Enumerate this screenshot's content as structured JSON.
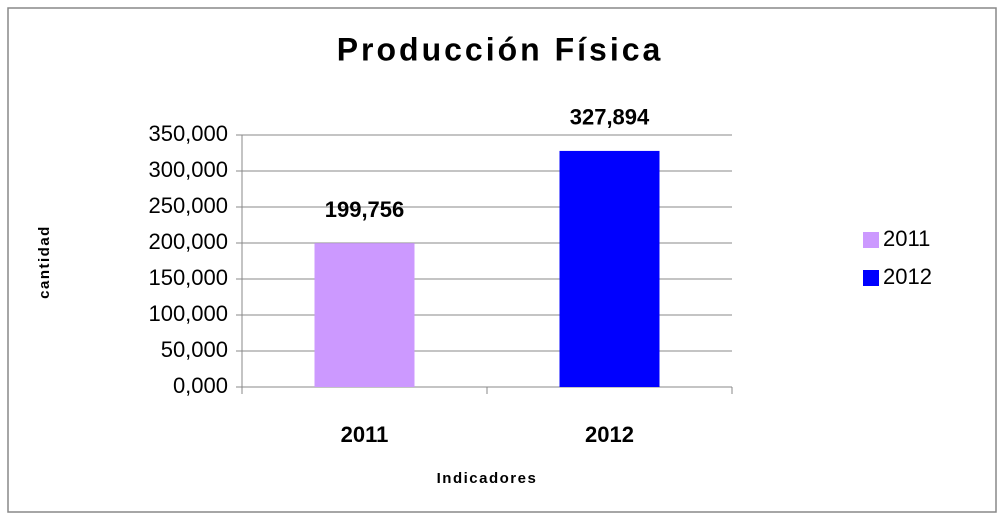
{
  "chart_data": {
    "type": "bar",
    "title": "Producción Física",
    "x_label": "Indicadores",
    "y_label": "cantidad",
    "categories": [
      "2011",
      "2012"
    ],
    "series": [
      {
        "name": "2011",
        "color": "#cc99ff",
        "values": [
          199.756,
          null
        ],
        "value_labels": [
          "199,756",
          null
        ]
      },
      {
        "name": "2012",
        "color": "#0000ff",
        "values": [
          null,
          327.894
        ],
        "value_labels": [
          null,
          "327,894"
        ]
      }
    ],
    "ylim": [
      0,
      350
    ],
    "yticks": [
      {
        "value": 0,
        "label": "0,000"
      },
      {
        "value": 50,
        "label": "50,000"
      },
      {
        "value": 100,
        "label": "100,000"
      },
      {
        "value": 150,
        "label": "150,000"
      },
      {
        "value": 200,
        "label": "200,000"
      },
      {
        "value": 250,
        "label": "250,000"
      },
      {
        "value": 300,
        "label": "300,000"
      },
      {
        "value": 350,
        "label": "350,000"
      }
    ],
    "grid": true,
    "legend": "right"
  }
}
